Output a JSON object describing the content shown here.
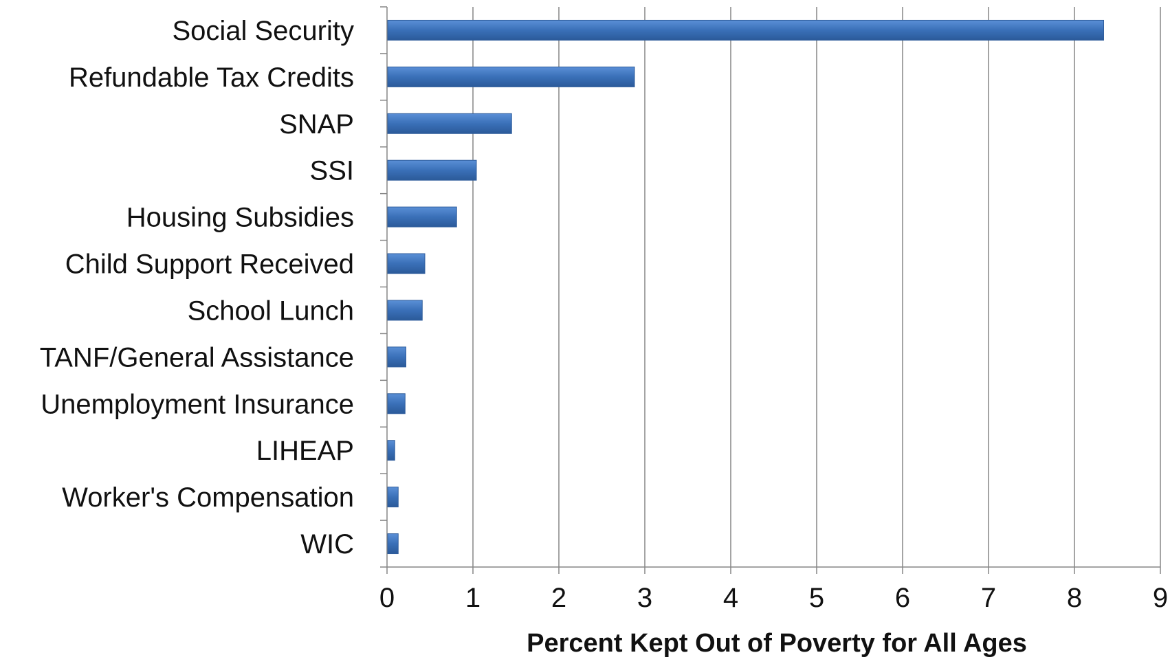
{
  "chart_data": {
    "type": "bar",
    "orientation": "horizontal",
    "categories": [
      "Social Security",
      "Refundable Tax Credits",
      "SNAP",
      "SSI",
      "Housing Subsidies",
      "Child Support Received",
      "School Lunch",
      "TANF/General Assistance",
      "Unemployment Insurance",
      "LIHEAP",
      "Worker's Compensation",
      "WIC"
    ],
    "values": [
      8.34,
      2.88,
      1.45,
      1.04,
      0.81,
      0.44,
      0.41,
      0.22,
      0.21,
      0.09,
      0.13,
      0.13
    ],
    "xlabel": "Percent Kept Out of Poverty for All Ages",
    "ylabel": "",
    "xlim": [
      0,
      9
    ],
    "xticks": [
      "0",
      "1",
      "2",
      "3",
      "4",
      "5",
      "6",
      "7",
      "8",
      "9"
    ],
    "grid": "vertical",
    "legend": "none",
    "colors": {
      "bar": "#3a70b8",
      "bar_edge": "#2f5d9c",
      "gridline": "#868686",
      "axis": "#868686"
    }
  }
}
